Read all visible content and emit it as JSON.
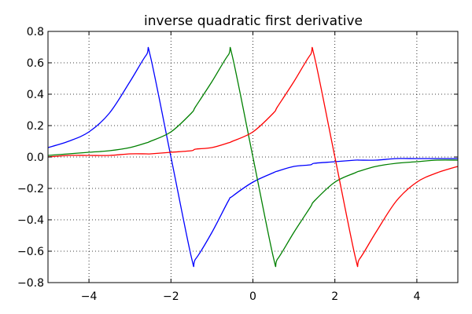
{
  "chart_data": {
    "type": "line",
    "title": "inverse quadratic first derivative",
    "xlabel": "",
    "ylabel": "",
    "xlim": [
      -5,
      5
    ],
    "ylim": [
      -0.8,
      0.8
    ],
    "xticks": [
      -4,
      -2,
      0,
      2,
      4
    ],
    "xtick_labels": [
      "−4",
      "−2",
      "0",
      "2",
      "4"
    ],
    "yticks": [
      0.8,
      0.6,
      0.4,
      0.2,
      0.0,
      -0.2,
      -0.4,
      -0.6,
      -0.8
    ],
    "ytick_labels": [
      "0.8",
      "0.6",
      "0.4",
      "0.2",
      "0.0",
      "−0.2",
      "−0.4",
      "−0.6",
      "−0.8"
    ],
    "grid": true,
    "grid_style": "dotted",
    "legend": "none",
    "x": [
      -5,
      -4.5,
      -4,
      -3.5,
      -3,
      -2.6,
      -2.5,
      -2,
      -1.5,
      -1.4,
      -1,
      -0.6,
      -0.5,
      0,
      0.5,
      0.6,
      1,
      1.4,
      1.5,
      2,
      2.5,
      2.6,
      3,
      3.5,
      4,
      4.5,
      5
    ],
    "series": [
      {
        "color": "#0000ff",
        "values": [
          0.06,
          0.1,
          0.16,
          0.28,
          0.48,
          0.65,
          0.64,
          0.0,
          -0.64,
          -0.65,
          -0.48,
          -0.28,
          -0.25,
          -0.16,
          -0.1,
          -0.09,
          -0.06,
          -0.05,
          -0.04,
          -0.03,
          -0.02,
          -0.02,
          -0.02,
          -0.01,
          -0.01,
          -0.01,
          -0.01
        ]
      },
      {
        "color": "#008000",
        "values": [
          0.01,
          0.02,
          0.03,
          0.04,
          0.06,
          0.09,
          0.1,
          0.16,
          0.28,
          0.32,
          0.48,
          0.65,
          0.64,
          0.0,
          -0.64,
          -0.65,
          -0.48,
          -0.32,
          -0.28,
          -0.16,
          -0.1,
          -0.09,
          -0.06,
          -0.04,
          -0.03,
          -0.02,
          -0.02
        ]
      },
      {
        "color": "#ff0000",
        "values": [
          0.0,
          0.01,
          0.01,
          0.01,
          0.02,
          0.02,
          0.02,
          0.03,
          0.04,
          0.05,
          0.06,
          0.09,
          0.1,
          0.16,
          0.28,
          0.32,
          0.48,
          0.65,
          0.64,
          0.0,
          -0.64,
          -0.65,
          -0.48,
          -0.28,
          -0.16,
          -0.1,
          -0.06
        ]
      }
    ]
  }
}
